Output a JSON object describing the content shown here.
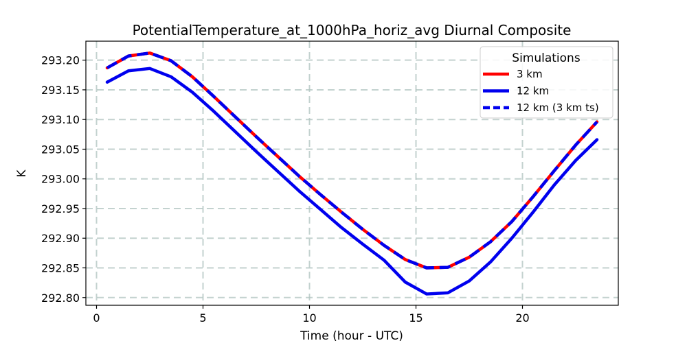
{
  "chart_data": {
    "type": "line",
    "title": "PotentialTemperature_at_1000hPa_horiz_avg Diurnal Composite",
    "xlabel": "Time (hour - UTC)",
    "ylabel": "K",
    "xlim": [
      -0.5,
      24.5
    ],
    "ylim": [
      292.787,
      293.232
    ],
    "xticks": [
      0,
      5,
      10,
      15,
      20
    ],
    "xtick_labels": [
      "0",
      "5",
      "10",
      "15",
      "20"
    ],
    "yticks": [
      292.8,
      292.85,
      292.9,
      292.95,
      293.0,
      293.05,
      293.1,
      293.15,
      293.2
    ],
    "ytick_labels": [
      "292.80",
      "292.85",
      "292.90",
      "292.95",
      "293.00",
      "293.05",
      "293.10",
      "293.15",
      "293.20"
    ],
    "grid": true,
    "x": [
      0.5,
      1.5,
      2.5,
      3.5,
      4.5,
      5.5,
      6.5,
      7.5,
      8.5,
      9.5,
      10.5,
      11.5,
      12.5,
      13.5,
      14.5,
      15.5,
      16.5,
      17.5,
      18.5,
      19.5,
      20.5,
      21.5,
      22.5,
      23.5
    ],
    "series": [
      {
        "name": "3 km",
        "color": "#ff0000",
        "linestyle": "solid",
        "values": [
          293.187,
          293.207,
          293.212,
          293.199,
          293.172,
          293.139,
          293.105,
          293.071,
          293.038,
          293.005,
          292.974,
          292.944,
          292.915,
          292.888,
          292.864,
          292.85,
          292.851,
          292.868,
          292.894,
          292.928,
          292.97,
          293.014,
          293.057,
          293.096
        ]
      },
      {
        "name": "12 km",
        "color": "#0000ee",
        "linestyle": "solid",
        "values": [
          293.163,
          293.182,
          293.186,
          293.172,
          293.146,
          293.114,
          293.08,
          293.046,
          293.013,
          292.98,
          292.949,
          292.918,
          292.89,
          292.863,
          292.826,
          292.806,
          292.808,
          292.828,
          292.86,
          292.9,
          292.944,
          292.99,
          293.031,
          293.066
        ]
      },
      {
        "name": "12 km (3 km ts)",
        "color": "#0000ee",
        "linestyle": "dashed",
        "values": [
          293.187,
          293.207,
          293.212,
          293.199,
          293.172,
          293.139,
          293.105,
          293.071,
          293.038,
          293.005,
          292.974,
          292.944,
          292.915,
          292.888,
          292.864,
          292.85,
          292.851,
          292.868,
          292.894,
          292.928,
          292.97,
          293.014,
          293.057,
          293.096
        ]
      }
    ],
    "legend": {
      "title": "Simulations",
      "position": "top-right"
    }
  }
}
